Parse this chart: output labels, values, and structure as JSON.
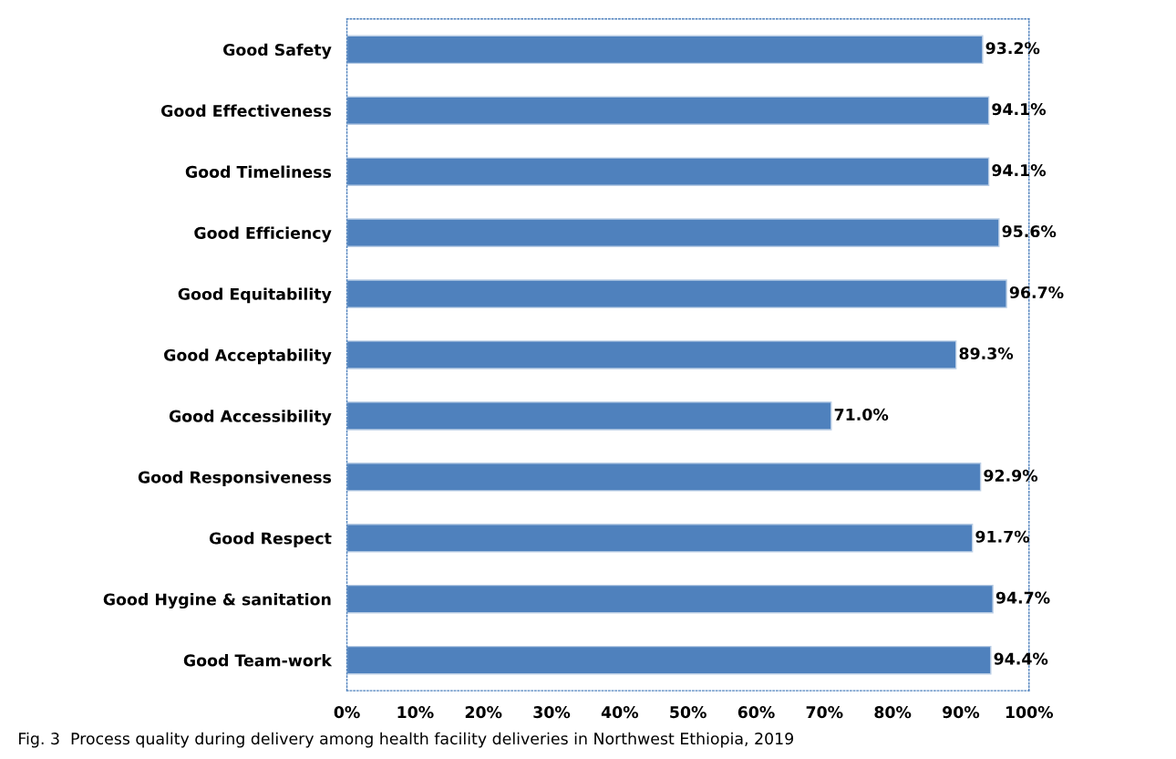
{
  "chart_data": {
    "type": "bar",
    "orientation": "horizontal",
    "categories": [
      "Good Safety",
      "Good Effectiveness",
      "Good Timeliness",
      "Good Efficiency",
      "Good Equitability",
      "Good Acceptability",
      "Good Accessibility",
      "Good Responsiveness",
      "Good Respect",
      "Good Hygine & sanitation",
      "Good Team-work"
    ],
    "values": [
      93.2,
      94.1,
      94.1,
      95.6,
      96.7,
      89.3,
      71.0,
      92.9,
      91.7,
      94.7,
      94.4
    ],
    "value_labels": [
      "93.2%",
      "94.1%",
      "94.1%",
      "95.6%",
      "96.7%",
      "89.3%",
      "71.0%",
      "92.9%",
      "91.7%",
      "94.7%",
      "94.4%"
    ],
    "color": "#4f81bd",
    "xlim": [
      0,
      100
    ],
    "xticks": [
      {
        "value": 0,
        "label": "0%"
      },
      {
        "value": 10,
        "label": "10%"
      },
      {
        "value": 20,
        "label": "20%"
      },
      {
        "value": 30,
        "label": "30%"
      },
      {
        "value": 40,
        "label": "40%"
      },
      {
        "value": 50,
        "label": "50%"
      },
      {
        "value": 60,
        "label": "60%"
      },
      {
        "value": 70,
        "label": "70%"
      },
      {
        "value": 80,
        "label": "80%"
      },
      {
        "value": 90,
        "label": "90%"
      },
      {
        "value": 100,
        "label": "100%"
      }
    ],
    "grid": false,
    "legend": false,
    "annotations": [
      "Fig. 3  Process quality during delivery among health facility deliveries in Northwest Ethiopia, 2019"
    ]
  }
}
